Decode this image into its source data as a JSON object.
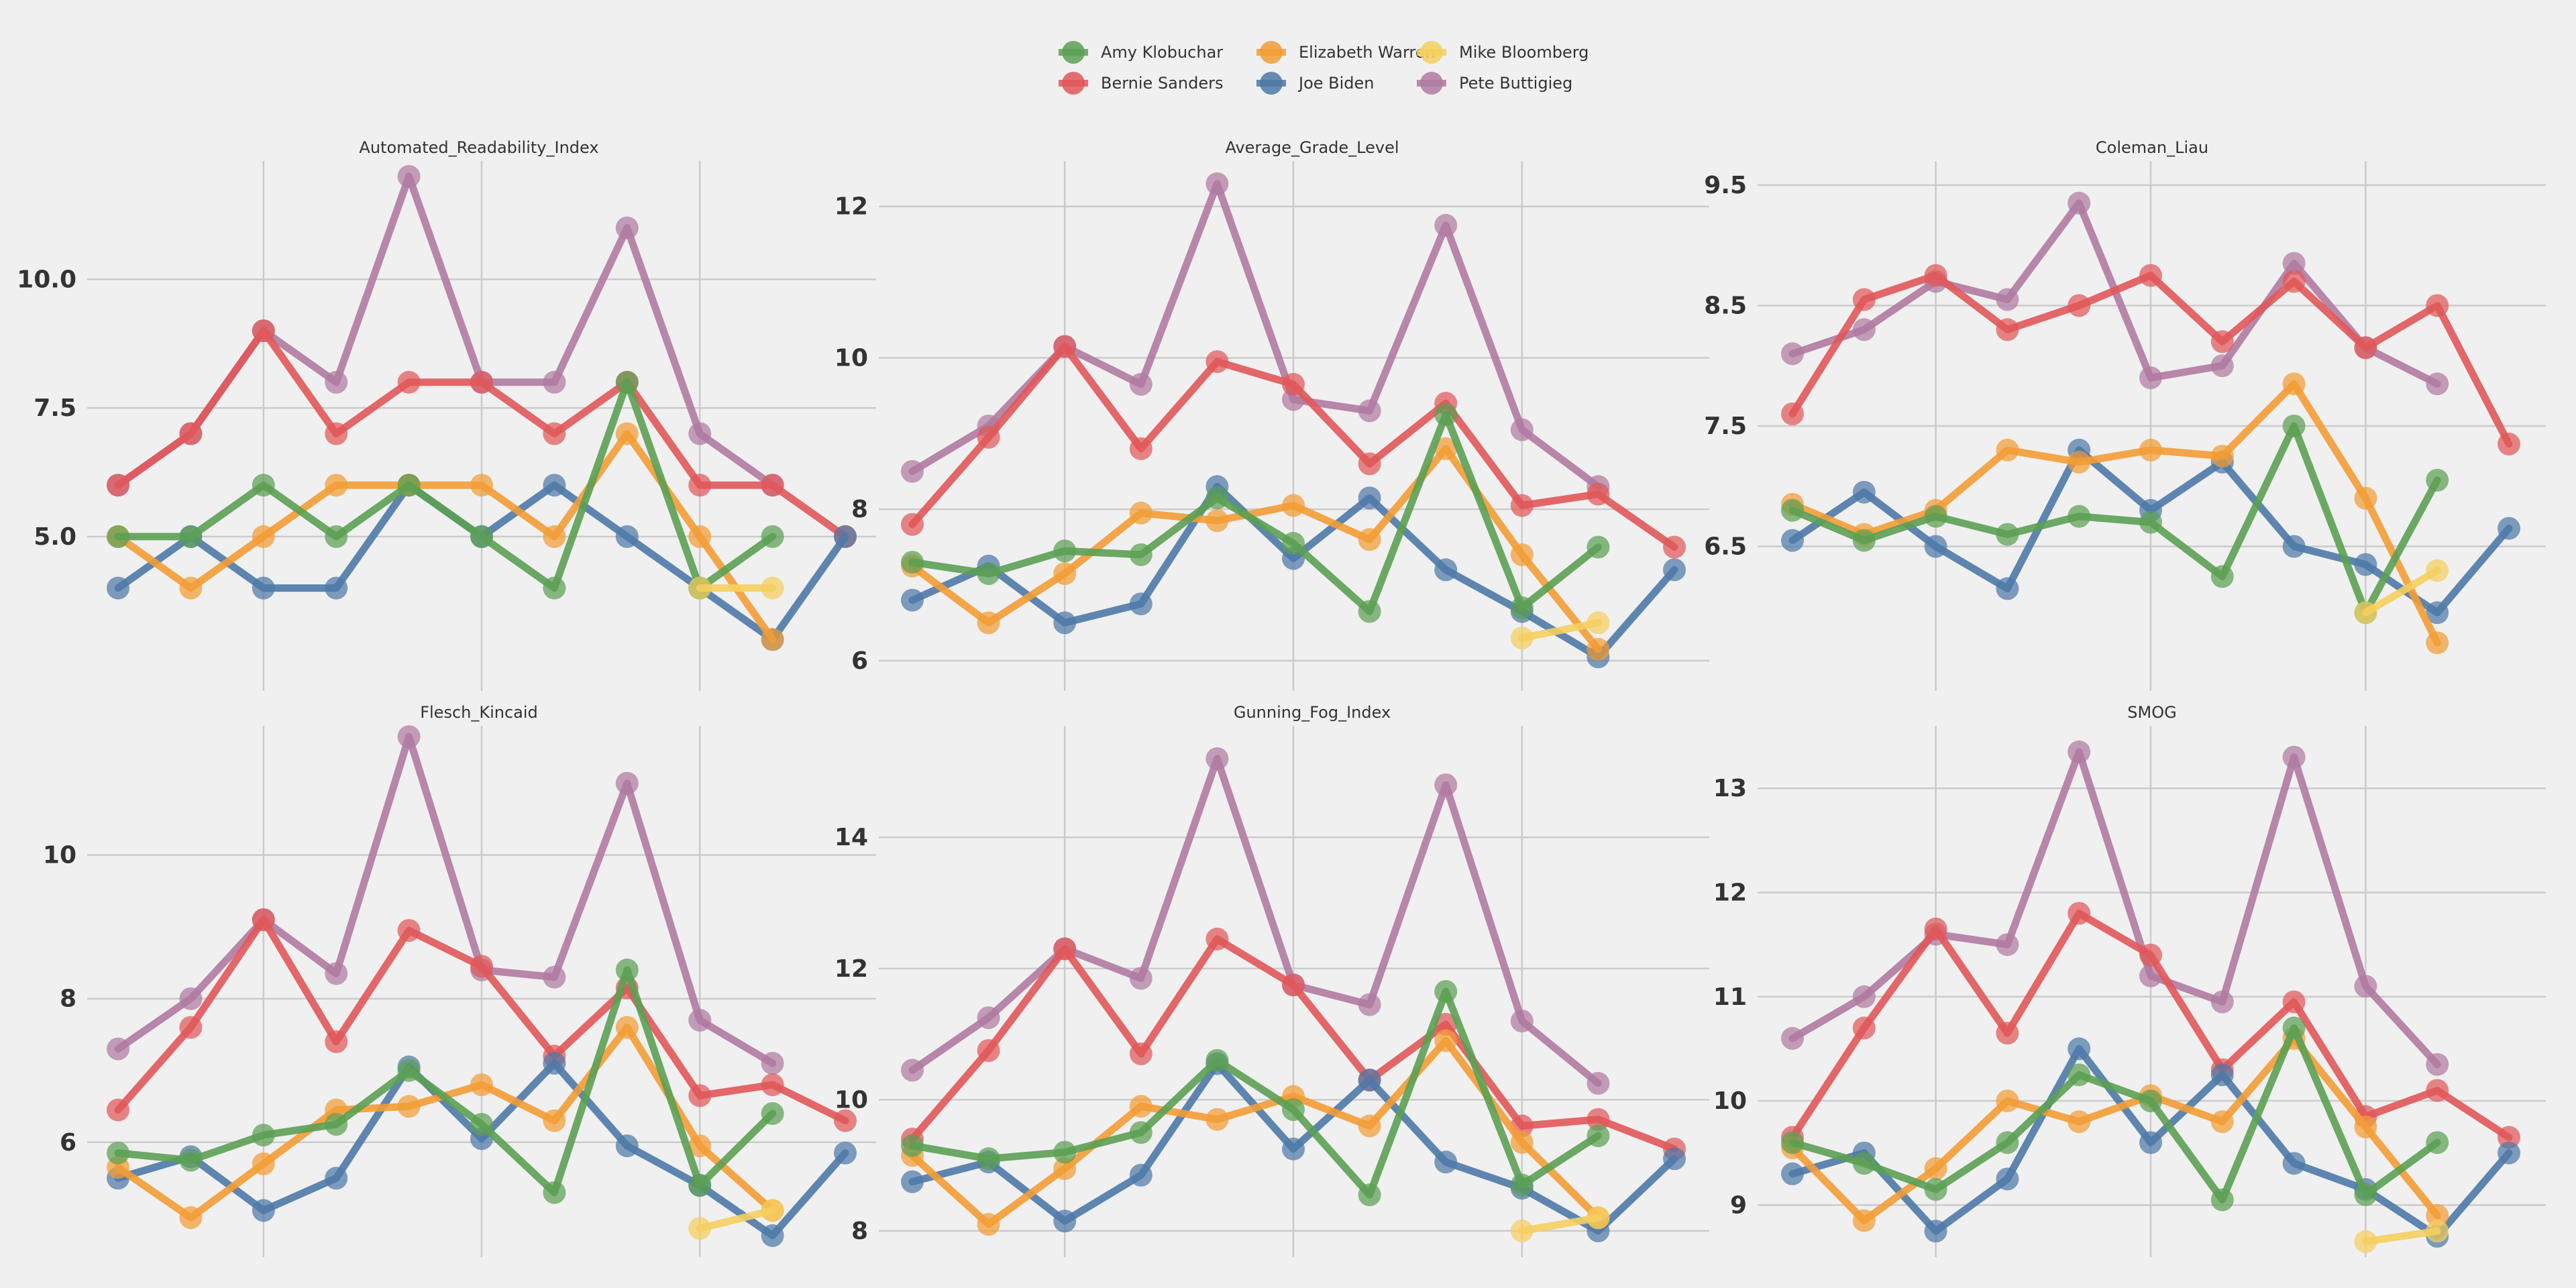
{
  "legend": [
    {
      "name": "Amy Klobuchar",
      "color": "#5ba053"
    },
    {
      "name": "Elizabeth Warren",
      "color": "#f39c35"
    },
    {
      "name": "Mike Bloomberg",
      "color": "#f5cf5e"
    },
    {
      "name": "Bernie Sanders",
      "color": "#e15759"
    },
    {
      "name": "Joe Biden",
      "color": "#4e79a7"
    },
    {
      "name": "Pete Buttigieg",
      "color": "#b07aa1"
    }
  ],
  "chart_data": [
    {
      "type": "line",
      "title": "Automated_Readability_Index",
      "x": [
        0,
        1,
        2,
        3,
        4,
        5,
        6,
        7,
        8,
        9,
        10
      ],
      "ylim": [
        2.0,
        12.3
      ],
      "yticks": [
        5.0,
        7.5,
        10.0
      ],
      "ytick_labels": [
        "5.0",
        "7.5",
        "10.0"
      ],
      "series": [
        {
          "name": "Amy Klobuchar",
          "values": [
            5,
            5,
            6,
            5,
            6,
            5,
            4,
            8,
            4,
            5,
            null
          ]
        },
        {
          "name": "Elizabeth Warren",
          "values": [
            5,
            4,
            5,
            6,
            6,
            6,
            5,
            7,
            5,
            3,
            null
          ]
        },
        {
          "name": "Mike Bloomberg",
          "values": [
            null,
            null,
            null,
            null,
            null,
            null,
            null,
            null,
            4,
            4,
            null
          ]
        },
        {
          "name": "Bernie Sanders",
          "values": [
            6,
            7,
            9,
            7,
            8,
            8,
            7,
            8,
            6,
            6,
            5
          ]
        },
        {
          "name": "Joe Biden",
          "values": [
            4,
            5,
            4,
            4,
            6,
            5,
            6,
            5,
            4,
            3,
            5
          ]
        },
        {
          "name": "Pete Buttigieg",
          "values": [
            6,
            7,
            9,
            8,
            12,
            8,
            8,
            11,
            7,
            6,
            null
          ]
        }
      ]
    },
    {
      "type": "line",
      "title": "Average_Grade_Level",
      "x": [
        0,
        1,
        2,
        3,
        4,
        5,
        6,
        7,
        8,
        9,
        10
      ],
      "ylim": [
        5.6,
        12.6
      ],
      "yticks": [
        6,
        8,
        10,
        12
      ],
      "ytick_labels": [
        "6",
        "8",
        "10",
        "12"
      ],
      "series": [
        {
          "name": "Amy Klobuchar",
          "values": [
            7.3,
            7.15,
            7.45,
            7.4,
            8.15,
            7.55,
            6.65,
            9.25,
            6.7,
            7.5,
            null
          ]
        },
        {
          "name": "Elizabeth Warren",
          "values": [
            7.25,
            6.5,
            7.15,
            7.95,
            7.85,
            8.05,
            7.6,
            8.8,
            7.4,
            6.15,
            null
          ]
        },
        {
          "name": "Mike Bloomberg",
          "values": [
            null,
            null,
            null,
            null,
            null,
            null,
            null,
            null,
            6.3,
            6.5,
            null
          ]
        },
        {
          "name": "Bernie Sanders",
          "values": [
            7.8,
            8.95,
            10.15,
            8.8,
            9.95,
            9.65,
            8.6,
            9.4,
            8.05,
            8.2,
            7.5
          ]
        },
        {
          "name": "Joe Biden",
          "values": [
            6.8,
            7.25,
            6.5,
            6.75,
            8.3,
            7.35,
            8.15,
            7.2,
            6.65,
            6.05,
            7.2
          ]
        },
        {
          "name": "Pete Buttigieg",
          "values": [
            8.5,
            9.1,
            10.15,
            9.65,
            12.3,
            9.45,
            9.3,
            11.75,
            9.05,
            8.3,
            null
          ]
        }
      ]
    },
    {
      "type": "line",
      "title": "Coleman_Liau",
      "x": [
        0,
        1,
        2,
        3,
        4,
        5,
        6,
        7,
        8,
        9,
        10
      ],
      "ylim": [
        5.3,
        9.7
      ],
      "yticks": [
        6.5,
        7.5,
        8.5,
        9.5
      ],
      "ytick_labels": [
        "6.5",
        "7.5",
        "8.5",
        "9.5"
      ],
      "series": [
        {
          "name": "Amy Klobuchar",
          "values": [
            6.8,
            6.55,
            6.75,
            6.6,
            6.75,
            6.7,
            6.25,
            7.5,
            5.95,
            7.05,
            null
          ]
        },
        {
          "name": "Elizabeth Warren",
          "values": [
            6.85,
            6.6,
            6.8,
            7.3,
            7.2,
            7.3,
            7.25,
            7.85,
            6.9,
            5.7,
            null
          ]
        },
        {
          "name": "Mike Bloomberg",
          "values": [
            null,
            null,
            null,
            null,
            null,
            null,
            null,
            null,
            5.95,
            6.3,
            null
          ]
        },
        {
          "name": "Bernie Sanders",
          "values": [
            7.6,
            8.55,
            8.75,
            8.3,
            8.5,
            8.75,
            8.2,
            8.7,
            8.15,
            8.5,
            7.35
          ]
        },
        {
          "name": "Joe Biden",
          "values": [
            6.55,
            6.95,
            6.5,
            6.15,
            7.3,
            6.8,
            7.2,
            6.5,
            6.35,
            5.95,
            6.65
          ]
        },
        {
          "name": "Pete Buttigieg",
          "values": [
            8.1,
            8.3,
            8.7,
            8.55,
            9.35,
            7.9,
            8.0,
            8.85,
            8.15,
            7.85,
            null
          ]
        }
      ]
    },
    {
      "type": "line",
      "title": "Flesch_Kincaid",
      "x": [
        0,
        1,
        2,
        3,
        4,
        5,
        6,
        7,
        8,
        9,
        10
      ],
      "ylim": [
        4.4,
        11.8
      ],
      "yticks": [
        6,
        8,
        10
      ],
      "ytick_labels": [
        "6",
        "8",
        "10"
      ],
      "series": [
        {
          "name": "Amy Klobuchar",
          "values": [
            5.85,
            5.75,
            6.1,
            6.25,
            7.0,
            6.25,
            5.3,
            8.4,
            5.4,
            6.4,
            null
          ]
        },
        {
          "name": "Elizabeth Warren",
          "values": [
            5.65,
            4.95,
            5.7,
            6.45,
            6.5,
            6.8,
            6.3,
            7.6,
            5.95,
            5.05,
            null
          ]
        },
        {
          "name": "Mike Bloomberg",
          "values": [
            null,
            null,
            null,
            null,
            null,
            null,
            null,
            null,
            4.8,
            5.05,
            null
          ]
        },
        {
          "name": "Bernie Sanders",
          "values": [
            6.45,
            7.6,
            9.1,
            7.4,
            8.95,
            8.45,
            7.2,
            8.15,
            6.65,
            6.8,
            6.3
          ]
        },
        {
          "name": "Joe Biden",
          "values": [
            5.5,
            5.8,
            5.05,
            5.5,
            7.05,
            6.05,
            7.1,
            5.95,
            5.4,
            4.7,
            5.85
          ]
        },
        {
          "name": "Pete Buttigieg",
          "values": [
            7.3,
            8.0,
            9.1,
            8.35,
            11.65,
            8.4,
            8.3,
            11.0,
            7.7,
            7.1,
            null
          ]
        }
      ]
    },
    {
      "type": "line",
      "title": "Gunning_Fog_Index",
      "x": [
        0,
        1,
        2,
        3,
        4,
        5,
        6,
        7,
        8,
        9,
        10
      ],
      "ylim": [
        7.6,
        15.7
      ],
      "yticks": [
        8,
        10,
        12,
        14
      ],
      "ytick_labels": [
        "8",
        "10",
        "12",
        "14"
      ],
      "series": [
        {
          "name": "Amy Klobuchar",
          "values": [
            9.3,
            9.1,
            9.2,
            9.5,
            10.6,
            9.85,
            8.55,
            11.65,
            8.7,
            9.45,
            null
          ]
        },
        {
          "name": "Elizabeth Warren",
          "values": [
            9.15,
            8.1,
            8.95,
            9.9,
            9.7,
            10.05,
            9.6,
            10.9,
            9.35,
            8.2,
            null
          ]
        },
        {
          "name": "Mike Bloomberg",
          "values": [
            null,
            null,
            null,
            null,
            null,
            null,
            null,
            null,
            8.0,
            8.2,
            null
          ]
        },
        {
          "name": "Bernie Sanders",
          "values": [
            9.4,
            10.75,
            12.3,
            10.7,
            12.45,
            11.75,
            10.3,
            11.15,
            9.6,
            9.7,
            9.25
          ]
        },
        {
          "name": "Joe Biden",
          "values": [
            8.75,
            9.05,
            8.15,
            8.85,
            10.55,
            9.25,
            10.3,
            9.05,
            8.65,
            8.0,
            9.1
          ]
        },
        {
          "name": "Pete Buttigieg",
          "values": [
            10.45,
            11.25,
            12.3,
            11.85,
            15.2,
            11.75,
            11.45,
            14.8,
            11.2,
            10.25,
            null
          ]
        }
      ]
    },
    {
      "type": "line",
      "title": "SMOG",
      "x": [
        0,
        1,
        2,
        3,
        4,
        5,
        6,
        7,
        8,
        9,
        10
      ],
      "ylim": [
        8.5,
        13.6
      ],
      "yticks": [
        9,
        10,
        11,
        12,
        13
      ],
      "ytick_labels": [
        "9",
        "10",
        "11",
        "12",
        "13"
      ],
      "series": [
        {
          "name": "Amy Klobuchar",
          "values": [
            9.6,
            9.4,
            9.15,
            9.6,
            10.25,
            10.0,
            9.05,
            10.7,
            9.1,
            9.6,
            null
          ]
        },
        {
          "name": "Elizabeth Warren",
          "values": [
            9.55,
            8.85,
            9.35,
            10.0,
            9.8,
            10.05,
            9.8,
            10.6,
            9.75,
            8.9,
            null
          ]
        },
        {
          "name": "Mike Bloomberg",
          "values": [
            null,
            null,
            null,
            null,
            null,
            null,
            null,
            null,
            8.65,
            8.75,
            null
          ]
        },
        {
          "name": "Bernie Sanders",
          "values": [
            9.65,
            10.7,
            11.65,
            10.65,
            11.8,
            11.4,
            10.3,
            10.95,
            9.85,
            10.1,
            9.65
          ]
        },
        {
          "name": "Joe Biden",
          "values": [
            9.3,
            9.5,
            8.75,
            9.25,
            10.5,
            9.6,
            10.25,
            9.4,
            9.15,
            8.7,
            9.5
          ]
        },
        {
          "name": "Pete Buttigieg",
          "values": [
            10.6,
            11.0,
            11.6,
            11.5,
            13.35,
            11.2,
            10.95,
            13.3,
            11.1,
            10.35,
            null
          ]
        }
      ]
    }
  ]
}
